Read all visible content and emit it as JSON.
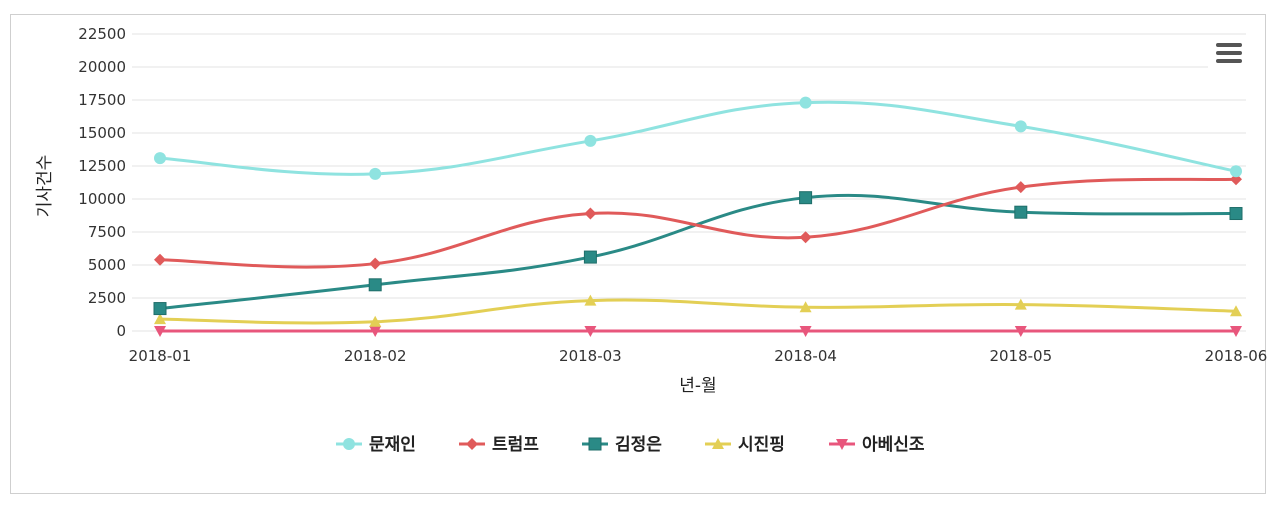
{
  "chart_data": {
    "type": "line",
    "title": "",
    "xlabel": "년-월",
    "ylabel": "기사건수",
    "categories": [
      "2018-01",
      "2018-02",
      "2018-03",
      "2018-04",
      "2018-05",
      "2018-06"
    ],
    "ylim": [
      0,
      22500
    ],
    "yticks": [
      0,
      2500,
      5000,
      7500,
      10000,
      12500,
      15000,
      17500,
      20000,
      22500
    ],
    "grid": true,
    "smooth": true,
    "legend_position": "bottom",
    "series": [
      {
        "name": "문재인",
        "color": "#8fe3e0",
        "marker": "circle",
        "values": [
          13100,
          11900,
          14400,
          17300,
          15500,
          12100
        ]
      },
      {
        "name": "트럼프",
        "color": "#e05a5a",
        "marker": "diamond",
        "values": [
          5400,
          5100,
          8900,
          7100,
          10900,
          11500
        ]
      },
      {
        "name": "김정은",
        "color": "#2a8a86",
        "marker": "square",
        "values": [
          1700,
          3500,
          5600,
          10100,
          9000,
          8900
        ]
      },
      {
        "name": "시진핑",
        "color": "#e3cf55",
        "marker": "triangle",
        "values": [
          900,
          700,
          2300,
          1800,
          2000,
          1500
        ]
      },
      {
        "name": "아베신조",
        "color": "#e8567c",
        "marker": "triangle-down",
        "values": [
          0,
          0,
          0,
          0,
          0,
          0
        ]
      }
    ]
  },
  "menu_icon": "hamburger-menu-icon"
}
